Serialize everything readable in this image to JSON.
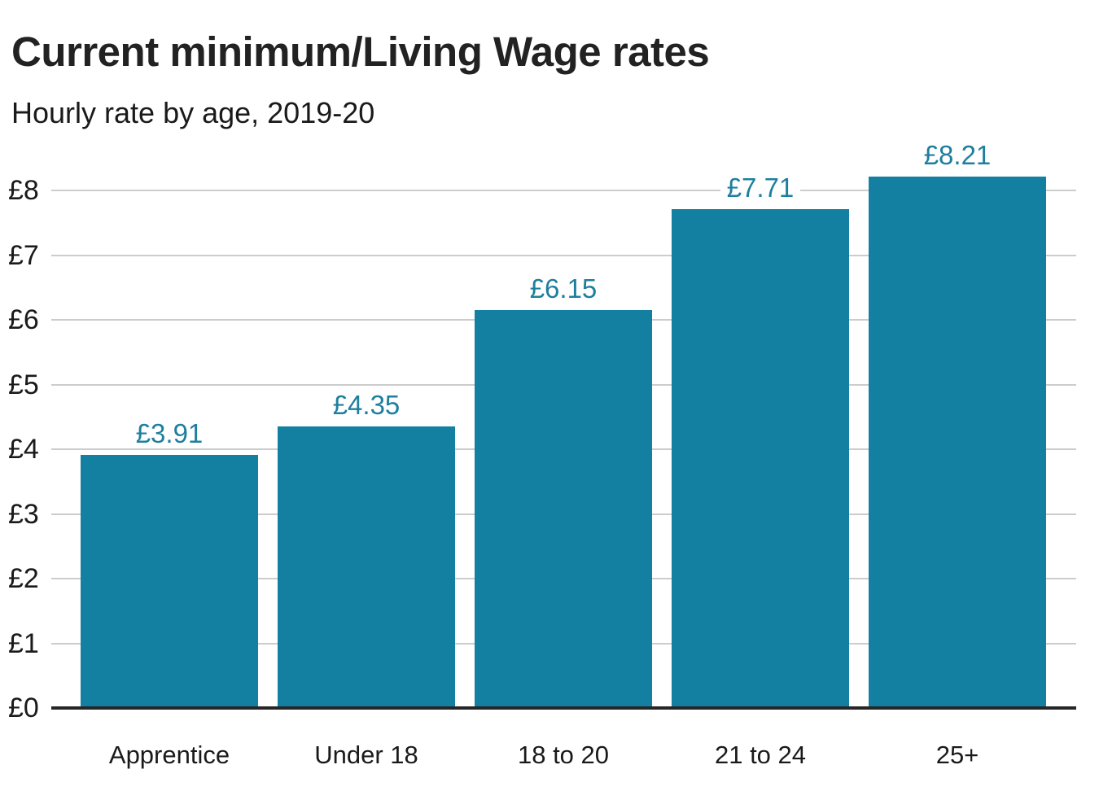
{
  "header": {
    "title": "Current minimum/Living Wage rates",
    "subtitle": "Hourly rate by age, 2019-20"
  },
  "colors": {
    "bar": "#1380a1",
    "value_label": "#1d7f9e",
    "grid": "#cccccc",
    "axis_line": "#262626",
    "text": "#1a1a1a"
  },
  "chart_data": {
    "type": "bar",
    "title": "Current minimum/Living Wage rates",
    "subtitle": "Hourly rate by age, 2019-20",
    "categories": [
      "Apprentice",
      "Under 18",
      "18 to 20",
      "21 to 24",
      "25+"
    ],
    "values": [
      3.91,
      4.35,
      6.15,
      7.71,
      8.21
    ],
    "value_labels": [
      "£3.91",
      "£4.35",
      "£6.15",
      "£7.71",
      "£8.21"
    ],
    "xlabel": "",
    "ylabel": "",
    "ylim": [
      0,
      8
    ],
    "y_ticks": [
      0,
      1,
      2,
      3,
      4,
      5,
      6,
      7,
      8
    ],
    "y_tick_labels": [
      "£0",
      "£1",
      "£2",
      "£3",
      "£4",
      "£5",
      "£6",
      "£7",
      "£8"
    ],
    "grid": true,
    "legend": false,
    "bar_color": "#1380a1"
  }
}
